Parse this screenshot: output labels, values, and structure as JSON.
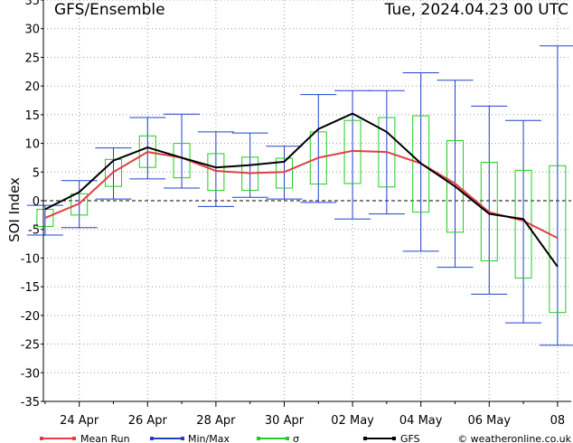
{
  "header": {
    "title": "GFS/Ensemble",
    "datetime": "Tue, 2024.04.23   00 UTC"
  },
  "footer": {
    "credit": "© weatheronline.co.uk"
  },
  "chart_data": {
    "type": "line",
    "ylabel": "SOI Index",
    "ylim": [
      -35,
      35
    ],
    "y_ticks": [
      35,
      30,
      25,
      20,
      15,
      10,
      5,
      0,
      -5,
      -10,
      -15,
      -20,
      -25,
      -30,
      -35
    ],
    "x_range_days": [
      -0.05,
      15.4
    ],
    "x_ticks": [
      {
        "day": 1,
        "label": "24 Apr"
      },
      {
        "day": 3,
        "label": "26 Apr"
      },
      {
        "day": 5,
        "label": "28 Apr"
      },
      {
        "day": 7,
        "label": "30 Apr"
      },
      {
        "day": 9,
        "label": "02 May"
      },
      {
        "day": 11,
        "label": "04 May"
      },
      {
        "day": 13,
        "label": "06 May"
      },
      {
        "day": 15,
        "label": "08"
      }
    ],
    "grid": true,
    "zero_line": "dashed",
    "legend": [
      {
        "label": "Mean Run",
        "color": "#e04040"
      },
      {
        "label": "Min/Max",
        "color": "#2040d0"
      },
      {
        "label": "σ",
        "color": "#22cc22"
      },
      {
        "label": "GFS",
        "color": "#000000"
      }
    ],
    "colors": {
      "mean": "#e04040",
      "minmax": "#2040d0",
      "sigma": "#22cc22",
      "gfs": "#000000",
      "grid": "#9a9a9a"
    },
    "x": [
      0,
      1,
      2,
      3,
      4,
      5,
      6,
      7,
      8,
      9,
      10,
      11,
      12,
      13,
      14,
      15
    ],
    "series": [
      {
        "name": "Mean Run",
        "values": [
          -3,
          -0.5,
          5,
          8.5,
          7.5,
          5.2,
          4.8,
          5,
          7.5,
          8.7,
          8.5,
          6.5,
          3,
          -2,
          -3.5,
          -6.5
        ]
      },
      {
        "name": "GFS",
        "values": [
          -1.5,
          1.5,
          7,
          9.3,
          7.5,
          5.8,
          6.2,
          6.8,
          12.5,
          15.2,
          12,
          6.5,
          2.5,
          -2.3,
          -3.2,
          -11.5
        ]
      },
      {
        "name": "Min/Max",
        "min": [
          -6,
          -4.7,
          0.3,
          3.8,
          2.2,
          -1,
          0.6,
          0.3,
          -0.3,
          -3.2,
          -2.3,
          -8.8,
          -11.6,
          -16.3,
          -21.3,
          -25.2
        ],
        "max": [
          -0.8,
          3.5,
          9.2,
          14.5,
          15.1,
          12,
          11.8,
          9.5,
          18.5,
          19.2,
          19.2,
          22.3,
          21,
          16.5,
          14,
          27
        ]
      },
      {
        "name": "σ",
        "low": [
          -4.5,
          -2.5,
          2.5,
          5.8,
          4,
          1.8,
          1.8,
          2.2,
          2.9,
          3,
          2.4,
          -2,
          -5.5,
          -10.5,
          -13.5,
          -19.5
        ],
        "high": [
          -1.5,
          1.2,
          7.2,
          11.3,
          10,
          8.2,
          7.6,
          7.4,
          12,
          14,
          14.5,
          14.8,
          10.5,
          6.7,
          5.3,
          6.1
        ]
      }
    ]
  }
}
